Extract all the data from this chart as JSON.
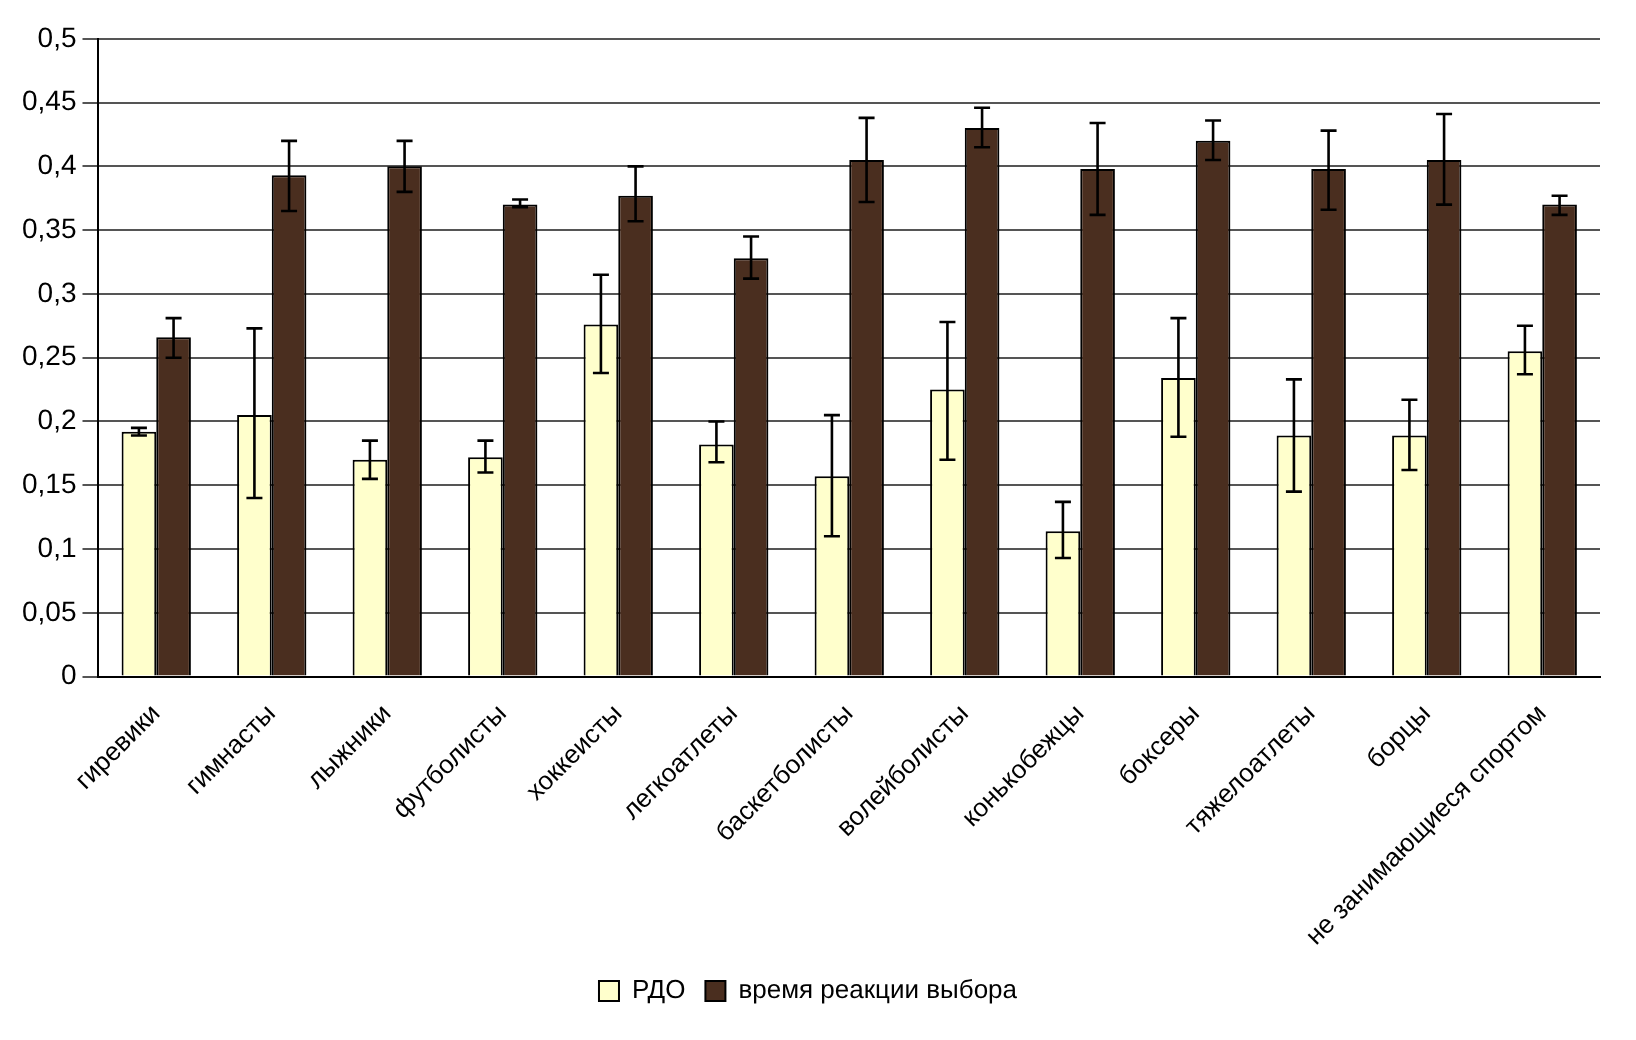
{
  "chart_data": {
    "type": "bar",
    "categories": [
      "гиревики",
      "гимнасты",
      "лыжники",
      "футболисты",
      "хоккеисты",
      "легкоатлеты",
      "баскетболисты",
      "волейболисты",
      "конькобежцы",
      "боксеры",
      "тяжелоатлеты",
      "борцы",
      "не занимающиеся спортом"
    ],
    "series": [
      {
        "name": "РДО",
        "color": "#ffffcc",
        "values": [
          0.192,
          0.205,
          0.17,
          0.172,
          0.276,
          0.182,
          0.157,
          0.225,
          0.114,
          0.234,
          0.189,
          0.189,
          0.255
        ],
        "errors": [
          [
            0.189,
            0.195
          ],
          [
            0.14,
            0.273
          ],
          [
            0.155,
            0.185
          ],
          [
            0.16,
            0.185
          ],
          [
            0.238,
            0.315
          ],
          [
            0.168,
            0.2
          ],
          [
            0.11,
            0.205
          ],
          [
            0.17,
            0.278
          ],
          [
            0.093,
            0.137
          ],
          [
            0.188,
            0.281
          ],
          [
            0.145,
            0.233
          ],
          [
            0.162,
            0.217
          ],
          [
            0.237,
            0.275
          ]
        ]
      },
      {
        "name": "время реакции выбора",
        "color": "#4a2e1f",
        "values": [
          0.266,
          0.393,
          0.4,
          0.37,
          0.377,
          0.328,
          0.405,
          0.43,
          0.398,
          0.42,
          0.398,
          0.405,
          0.37
        ],
        "errors": [
          [
            0.25,
            0.281
          ],
          [
            0.365,
            0.42
          ],
          [
            0.38,
            0.42
          ],
          [
            0.368,
            0.374
          ],
          [
            0.357,
            0.4
          ],
          [
            0.312,
            0.345
          ],
          [
            0.372,
            0.438
          ],
          [
            0.415,
            0.446
          ],
          [
            0.362,
            0.434
          ],
          [
            0.405,
            0.436
          ],
          [
            0.366,
            0.428
          ],
          [
            0.37,
            0.441
          ],
          [
            0.362,
            0.377
          ]
        ]
      }
    ],
    "ylim": [
      0,
      0.5
    ],
    "yticks": [
      0,
      {
        "value": 0.05,
        "label": "0,05"
      },
      {
        "value": 0.1,
        "label": "0,1"
      },
      {
        "value": 0.15,
        "label": "0,15"
      },
      {
        "value": 0.2,
        "label": "0,2"
      },
      {
        "value": 0.25,
        "label": "0,25"
      },
      {
        "value": 0.3,
        "label": "0,3"
      },
      {
        "value": 0.35,
        "label": "0,35"
      },
      {
        "value": 0.4,
        "label": "0,4"
      },
      {
        "value": 0.45,
        "label": "0,45"
      },
      {
        "value": 0.5,
        "label": "0,5"
      }
    ],
    "grid": "y",
    "legend": "bottom"
  }
}
